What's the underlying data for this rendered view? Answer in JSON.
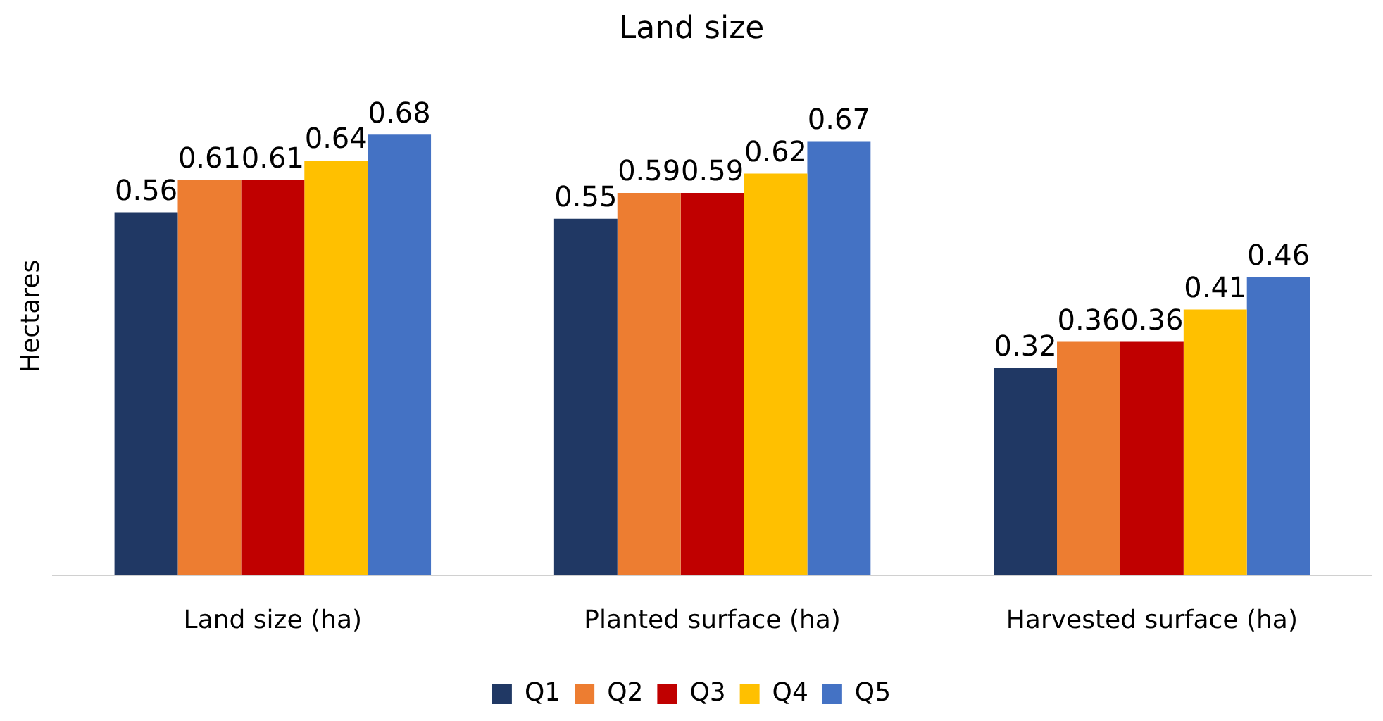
{
  "chart_data": {
    "type": "bar",
    "title": "Land size",
    "ylabel": "Hectares",
    "categories": [
      "Land size (ha)",
      "Planted surface (ha)",
      "Harvested surface (ha)"
    ],
    "series": [
      {
        "name": "Q1",
        "color": "#203864",
        "values": [
          0.56,
          0.55,
          0.32
        ]
      },
      {
        "name": "Q2",
        "color": "#ed7d31",
        "values": [
          0.61,
          0.59,
          0.36
        ]
      },
      {
        "name": "Q3",
        "color": "#c00000",
        "values": [
          0.61,
          0.59,
          0.36
        ]
      },
      {
        "name": "Q4",
        "color": "#ffc000",
        "values": [
          0.64,
          0.62,
          0.41
        ]
      },
      {
        "name": "Q5",
        "color": "#4472c4",
        "values": [
          0.68,
          0.67,
          0.46
        ]
      }
    ],
    "data_labels": true,
    "grid": false,
    "legend": "bottom",
    "tick_labels": "x"
  }
}
